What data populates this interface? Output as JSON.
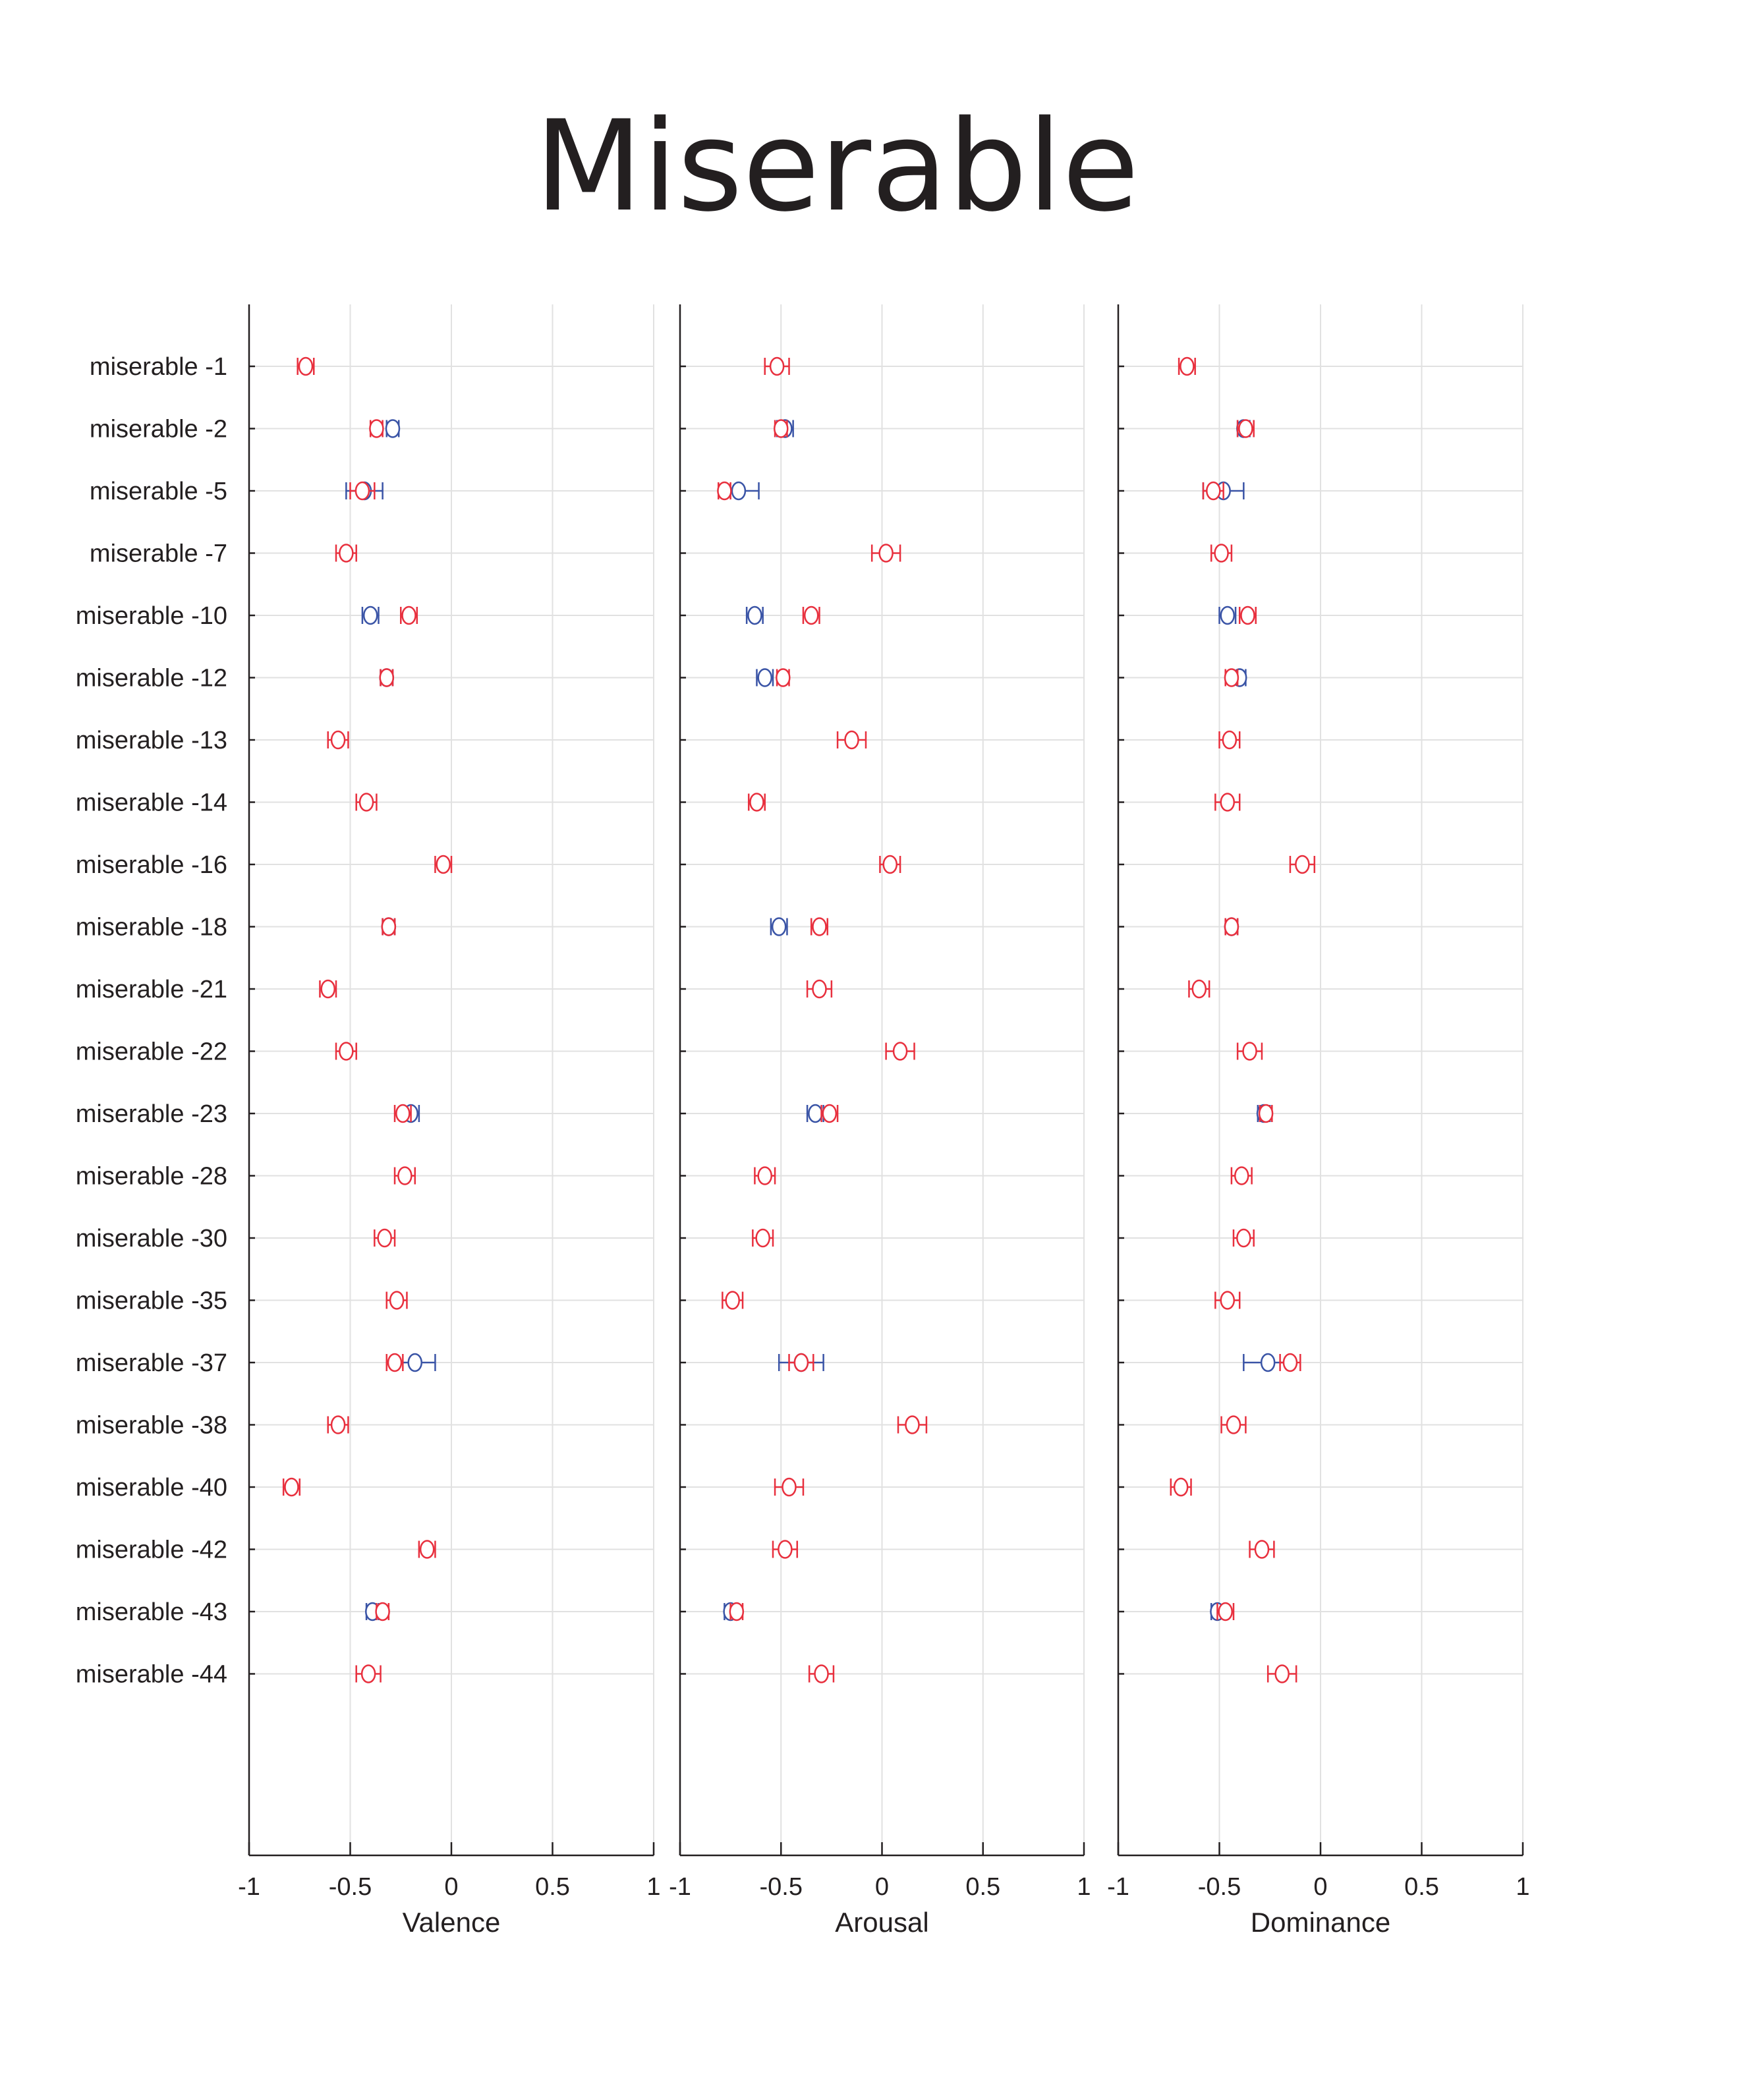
{
  "title": "Miserable",
  "colors": {
    "red": "#e8303e",
    "blue": "#3a54a6",
    "text": "#231f20",
    "grid": "#e1e1e1"
  },
  "chart_data": {
    "type": "scatter",
    "title": "Miserable",
    "categories": [
      "miserable -1",
      "miserable -2",
      "miserable -5",
      "miserable -7",
      "miserable -10",
      "miserable -12",
      "miserable -13",
      "miserable -14",
      "miserable -16",
      "miserable -18",
      "miserable -21",
      "miserable -22",
      "miserable -23",
      "miserable -28",
      "miserable -30",
      "miserable -35",
      "miserable -37",
      "miserable -38",
      "miserable -40",
      "miserable -42",
      "miserable -43",
      "miserable -44"
    ],
    "xlim": [
      -1,
      1
    ],
    "xticks": [
      "-1",
      "-0.5",
      "0",
      "0.5",
      "1"
    ],
    "grid": true,
    "panels": [
      {
        "xlabel": "Valence",
        "series": [
          {
            "color": "#e8303e",
            "mean": [
              -0.72,
              -0.37,
              -0.44,
              -0.52,
              -0.21,
              -0.32,
              -0.56,
              -0.42,
              -0.04,
              -0.31,
              -0.61,
              -0.52,
              -0.24,
              -0.23,
              -0.33,
              -0.27,
              -0.28,
              -0.56,
              -0.79,
              -0.12,
              -0.34,
              -0.41
            ],
            "err": [
              0.04,
              0.03,
              0.06,
              0.05,
              0.04,
              0.03,
              0.05,
              0.05,
              0.04,
              0.03,
              0.04,
              0.05,
              0.04,
              0.05,
              0.05,
              0.05,
              0.04,
              0.05,
              0.04,
              0.04,
              0.03,
              0.06
            ]
          },
          {
            "color": "#3a54a6",
            "mean": [
              null,
              -0.29,
              -0.43,
              null,
              -0.4,
              -0.32,
              null,
              null,
              null,
              -0.31,
              null,
              null,
              -0.2,
              null,
              null,
              null,
              -0.18,
              null,
              null,
              null,
              -0.39,
              null
            ],
            "err": [
              null,
              0.03,
              0.09,
              null,
              0.04,
              0.03,
              null,
              null,
              null,
              0.03,
              null,
              null,
              0.04,
              null,
              null,
              null,
              0.1,
              null,
              null,
              null,
              0.03,
              null
            ]
          }
        ]
      },
      {
        "xlabel": "Arousal",
        "series": [
          {
            "color": "#e8303e",
            "mean": [
              -0.52,
              -0.5,
              -0.78,
              0.02,
              -0.35,
              -0.49,
              -0.15,
              -0.62,
              0.04,
              -0.31,
              -0.31,
              0.09,
              -0.26,
              -0.58,
              -0.59,
              -0.74,
              -0.4,
              0.15,
              -0.46,
              -0.48,
              -0.72,
              -0.3
            ],
            "err": [
              0.06,
              0.03,
              0.03,
              0.07,
              0.04,
              0.03,
              0.07,
              0.04,
              0.05,
              0.04,
              0.06,
              0.07,
              0.04,
              0.05,
              0.05,
              0.05,
              0.06,
              0.07,
              0.07,
              0.06,
              0.03,
              0.06
            ]
          },
          {
            "color": "#3a54a6",
            "mean": [
              null,
              -0.48,
              -0.71,
              null,
              -0.63,
              -0.58,
              null,
              null,
              null,
              -0.51,
              null,
              null,
              -0.33,
              null,
              null,
              null,
              -0.4,
              null,
              null,
              null,
              -0.75,
              null
            ],
            "err": [
              null,
              0.04,
              0.1,
              null,
              0.04,
              0.04,
              null,
              null,
              null,
              0.04,
              null,
              null,
              0.04,
              null,
              null,
              null,
              0.11,
              null,
              null,
              null,
              0.03,
              null
            ]
          }
        ]
      },
      {
        "xlabel": "Dominance",
        "series": [
          {
            "color": "#e8303e",
            "mean": [
              -0.66,
              -0.37,
              -0.53,
              -0.49,
              -0.36,
              -0.44,
              -0.45,
              -0.46,
              -0.09,
              -0.44,
              -0.6,
              -0.35,
              -0.27,
              -0.39,
              -0.38,
              -0.46,
              -0.15,
              -0.43,
              -0.69,
              -0.29,
              -0.47,
              -0.19
            ],
            "err": [
              0.04,
              0.04,
              0.05,
              0.05,
              0.04,
              0.03,
              0.05,
              0.06,
              0.06,
              0.03,
              0.05,
              0.06,
              0.03,
              0.05,
              0.05,
              0.06,
              0.05,
              0.06,
              0.05,
              0.06,
              0.04,
              0.07
            ]
          },
          {
            "color": "#3a54a6",
            "mean": [
              null,
              -0.38,
              -0.48,
              null,
              -0.46,
              -0.4,
              null,
              null,
              null,
              -0.44,
              null,
              null,
              -0.28,
              null,
              null,
              null,
              -0.26,
              null,
              null,
              null,
              -0.51,
              null
            ],
            "err": [
              null,
              0.03,
              0.1,
              null,
              0.04,
              0.03,
              null,
              null,
              null,
              0.03,
              null,
              null,
              0.03,
              null,
              null,
              null,
              0.12,
              null,
              null,
              null,
              0.03,
              null
            ]
          }
        ]
      }
    ]
  }
}
